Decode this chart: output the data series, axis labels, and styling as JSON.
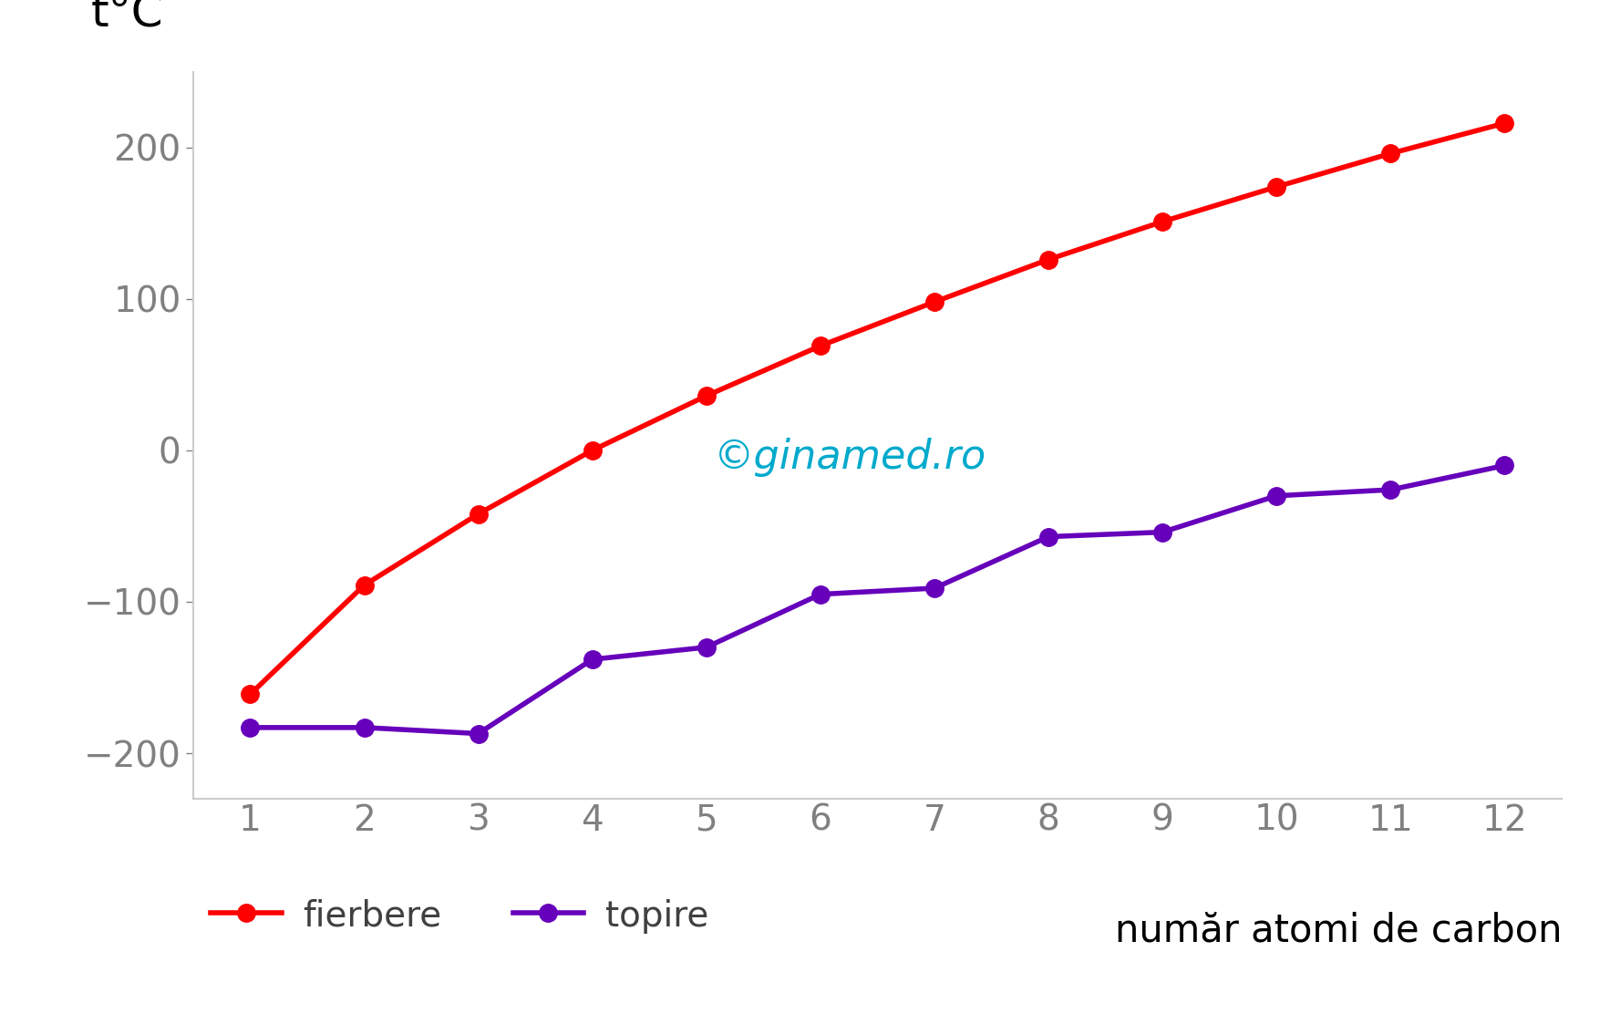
{
  "carbon_atoms": [
    1,
    2,
    3,
    4,
    5,
    6,
    7,
    8,
    9,
    10,
    11,
    12
  ],
  "fierbere": [
    -161,
    -89,
    -42,
    0,
    36,
    69,
    98,
    126,
    151,
    174,
    196,
    216
  ],
  "topire": [
    -183,
    -183,
    -187,
    -138,
    -130,
    -95,
    -91,
    -57,
    -54,
    -30,
    -26,
    -10
  ],
  "fierbere_color": "#ff0000",
  "topire_color": "#6600bb",
  "ylabel": "t°C",
  "xlabel": "număr atomi de carbon",
  "watermark": "©ginamed.ro",
  "watermark_color": "#00aacc",
  "ylim": [
    -230,
    250
  ],
  "yticks": [
    -200,
    -100,
    0,
    100,
    200
  ],
  "xticks": [
    1,
    2,
    3,
    4,
    5,
    6,
    7,
    8,
    9,
    10,
    11,
    12
  ],
  "background_color": "#ffffff",
  "legend_fierbere": "fierbere",
  "legend_topire": "topire",
  "line_width": 4.0,
  "marker_size": 14,
  "tick_label_color": "#808080",
  "spine_color": "#cccccc",
  "ytick_label_fontsize": 28,
  "xtick_label_fontsize": 28,
  "ylabel_fontsize": 36,
  "xlabel_fontsize": 30,
  "legend_fontsize": 28,
  "watermark_fontsize": 32
}
